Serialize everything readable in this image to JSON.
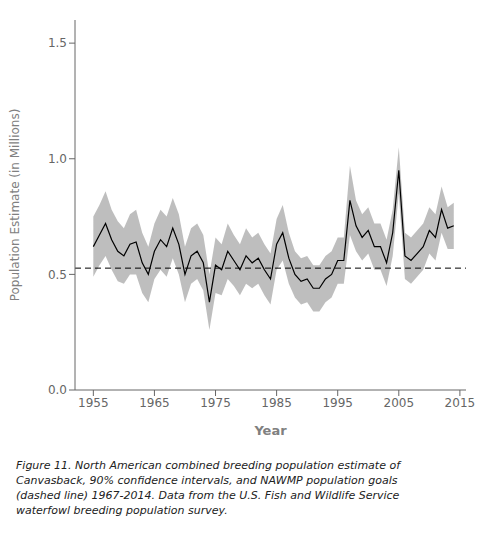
{
  "chart_data": {
    "type": "line",
    "x": [
      1955,
      1956,
      1957,
      1958,
      1959,
      1960,
      1961,
      1962,
      1963,
      1964,
      1965,
      1966,
      1967,
      1968,
      1969,
      1970,
      1971,
      1972,
      1973,
      1974,
      1975,
      1976,
      1977,
      1978,
      1979,
      1980,
      1981,
      1982,
      1983,
      1984,
      1985,
      1986,
      1987,
      1988,
      1989,
      1990,
      1991,
      1992,
      1993,
      1994,
      1995,
      1996,
      1997,
      1998,
      1999,
      2000,
      2001,
      2002,
      2003,
      2004,
      2005,
      2006,
      2007,
      2008,
      2009,
      2010,
      2011,
      2012,
      2013,
      2014
    ],
    "values": [
      0.62,
      0.67,
      0.72,
      0.65,
      0.6,
      0.58,
      0.63,
      0.64,
      0.55,
      0.5,
      0.6,
      0.65,
      0.62,
      0.7,
      0.63,
      0.5,
      0.58,
      0.6,
      0.55,
      0.38,
      0.54,
      0.52,
      0.6,
      0.56,
      0.52,
      0.58,
      0.55,
      0.57,
      0.52,
      0.48,
      0.63,
      0.68,
      0.57,
      0.5,
      0.47,
      0.48,
      0.44,
      0.44,
      0.48,
      0.5,
      0.56,
      0.56,
      0.82,
      0.71,
      0.66,
      0.69,
      0.62,
      0.62,
      0.55,
      0.68,
      0.95,
      0.58,
      0.56,
      0.59,
      0.62,
      0.69,
      0.66,
      0.78,
      0.7,
      0.71
    ],
    "color": "#000000",
    "ci": {
      "upper": [
        0.75,
        0.8,
        0.86,
        0.78,
        0.73,
        0.7,
        0.76,
        0.78,
        0.68,
        0.62,
        0.72,
        0.78,
        0.75,
        0.83,
        0.76,
        0.62,
        0.7,
        0.72,
        0.67,
        0.5,
        0.66,
        0.63,
        0.72,
        0.67,
        0.63,
        0.7,
        0.66,
        0.68,
        0.63,
        0.59,
        0.74,
        0.8,
        0.68,
        0.6,
        0.57,
        0.58,
        0.54,
        0.54,
        0.58,
        0.6,
        0.66,
        0.66,
        0.97,
        0.82,
        0.76,
        0.79,
        0.72,
        0.72,
        0.65,
        0.78,
        1.05,
        0.68,
        0.66,
        0.69,
        0.72,
        0.79,
        0.76,
        0.88,
        0.79,
        0.81
      ],
      "lower": [
        0.49,
        0.54,
        0.58,
        0.52,
        0.47,
        0.46,
        0.5,
        0.5,
        0.42,
        0.38,
        0.48,
        0.52,
        0.49,
        0.57,
        0.5,
        0.38,
        0.46,
        0.48,
        0.43,
        0.26,
        0.42,
        0.41,
        0.48,
        0.45,
        0.41,
        0.46,
        0.44,
        0.46,
        0.41,
        0.37,
        0.52,
        0.56,
        0.46,
        0.4,
        0.37,
        0.38,
        0.34,
        0.34,
        0.38,
        0.4,
        0.46,
        0.46,
        0.67,
        0.6,
        0.56,
        0.59,
        0.52,
        0.52,
        0.45,
        0.58,
        0.85,
        0.48,
        0.46,
        0.49,
        0.52,
        0.59,
        0.56,
        0.68,
        0.61,
        0.61
      ],
      "color": "#888888"
    },
    "goal_line": {
      "value": 0.527,
      "color": "#000000",
      "line_style": "dashed"
    },
    "xlabel": "Year",
    "ylabel": "Population Estimate (in Millions)",
    "xlim": [
      1952,
      2016
    ],
    "xticks": [
      1955,
      1965,
      1975,
      1985,
      1995,
      2005,
      2015
    ],
    "ylim": [
      0.0,
      1.6
    ],
    "yticks": [
      {
        "value": 0.0,
        "label": "0.0"
      },
      0.5,
      {
        "value": 1.0,
        "label": "1.0"
      },
      1.5
    ],
    "caption": "Figure 11. North American combined breeding population estimate of\nCanvasback, 90% confidence intervals, and NAWMP population goals\n(dashed line) 1967-2014. Data from the U.S. Fish and Wildlife Service\nwaterfowl breeding population survey."
  }
}
